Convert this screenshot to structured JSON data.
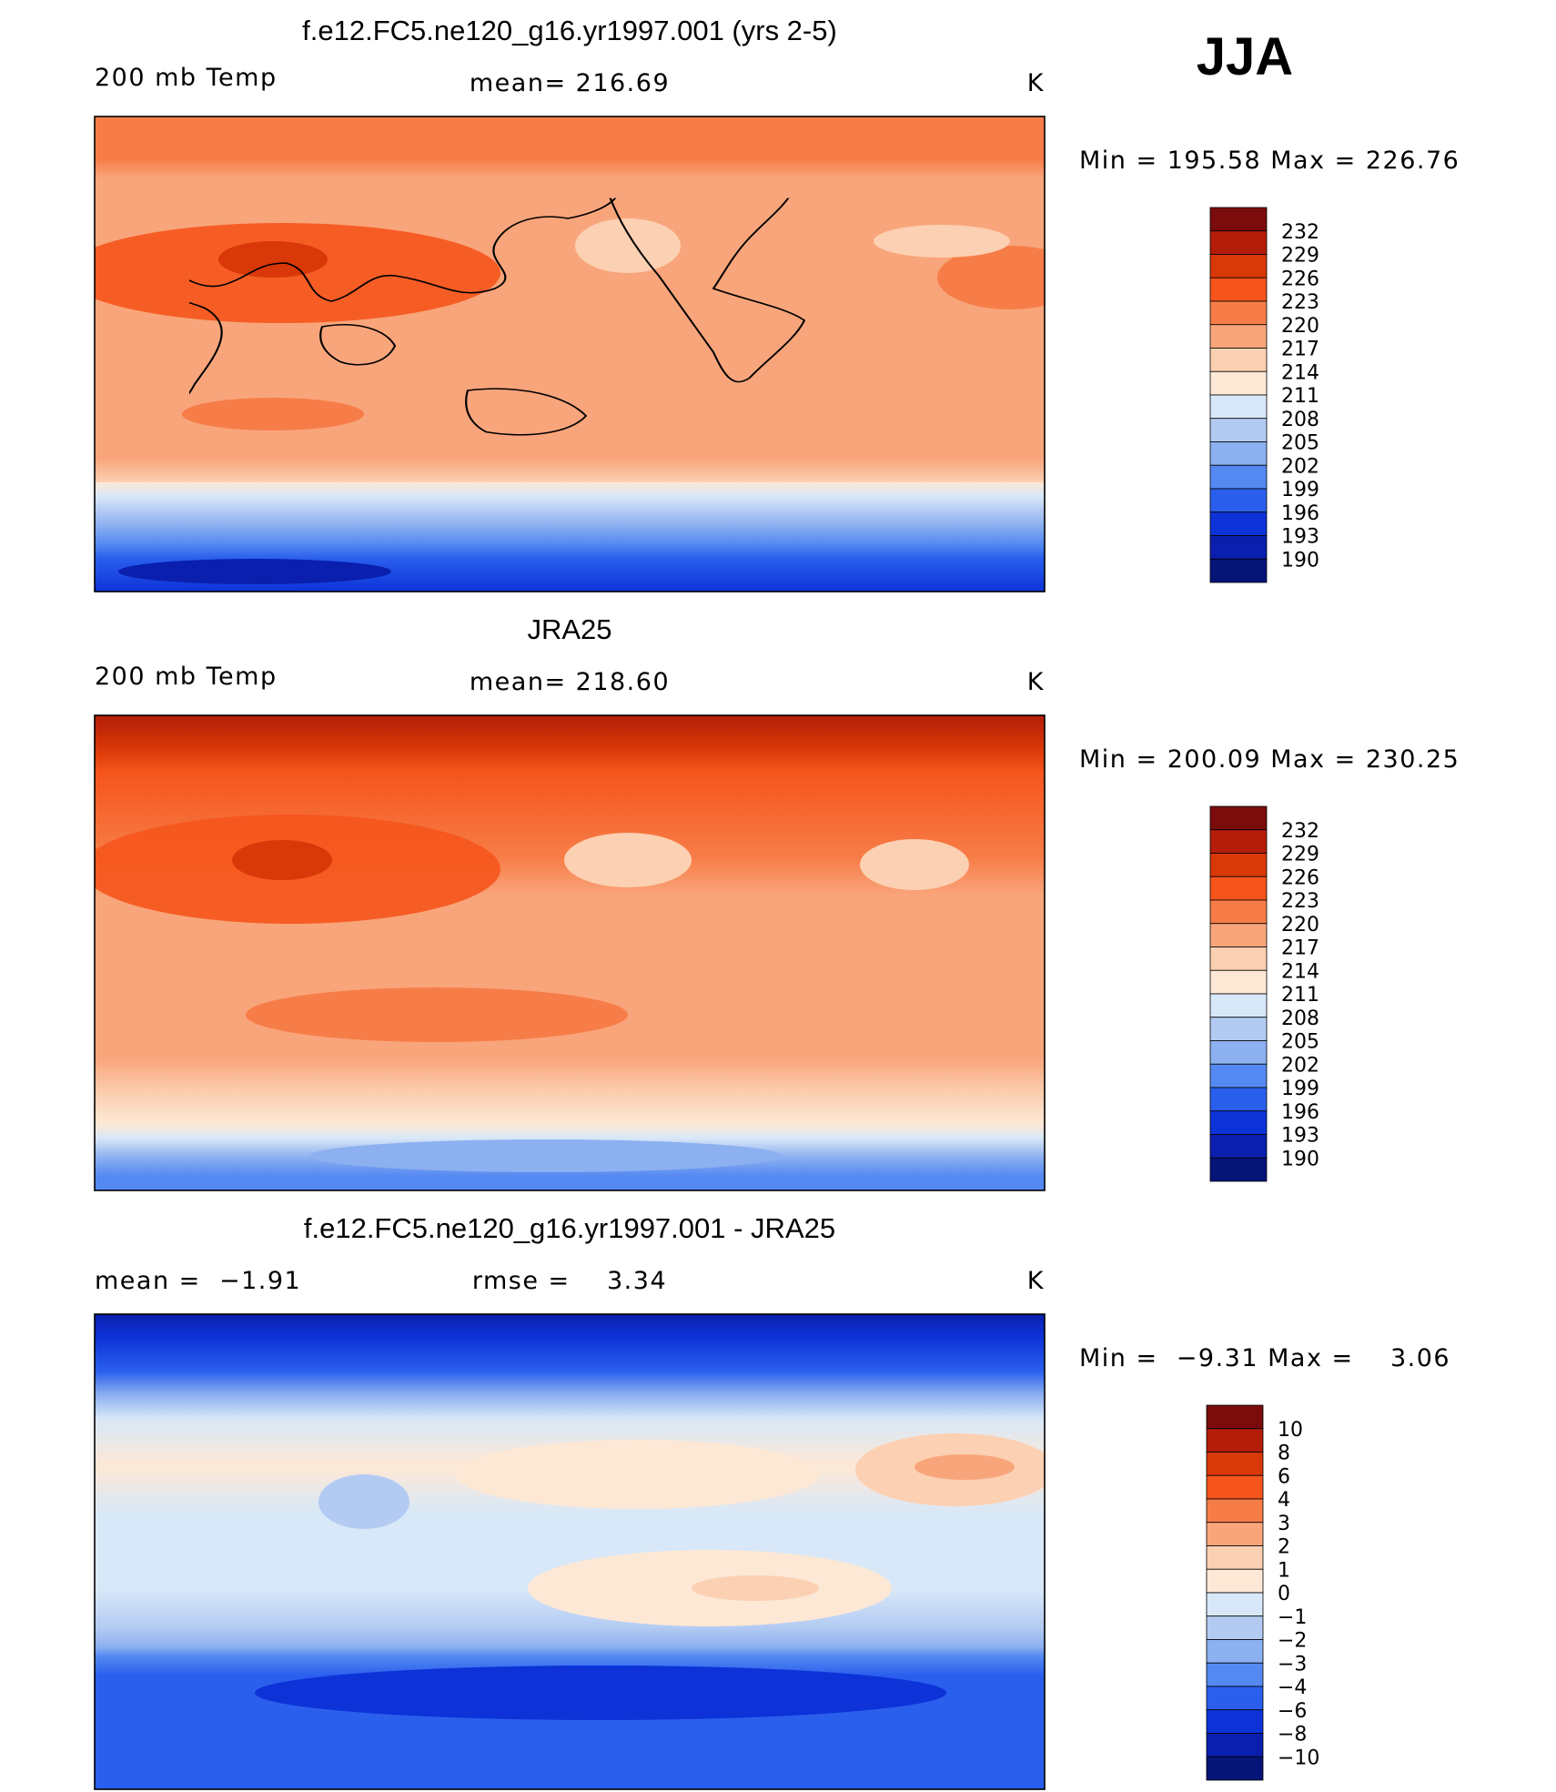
{
  "season": "JJA",
  "panels": [
    {
      "title": "f.e12.FC5.ne120_g16.yr1997.001 (yrs 2-5)",
      "left_text": "200 mb Temp",
      "center_text": "mean= 216.69",
      "units": "K",
      "minmax": "Min = 195.58 Max = 226.76",
      "colorbar_labels": [
        "232",
        "229",
        "226",
        "223",
        "220",
        "217",
        "214",
        "211",
        "208",
        "205",
        "202",
        "199",
        "196",
        "193",
        "190"
      ]
    },
    {
      "title": "JRA25",
      "left_text": "200 mb Temp",
      "center_text": "mean= 218.60",
      "units": "K",
      "minmax": "Min = 200.09 Max = 230.25",
      "colorbar_labels": [
        "232",
        "229",
        "226",
        "223",
        "220",
        "217",
        "214",
        "211",
        "208",
        "205",
        "202",
        "199",
        "196",
        "193",
        "190"
      ]
    },
    {
      "title": "f.e12.FC5.ne120_g16.yr1997.001 - JRA25",
      "left_text": "mean =  −1.91",
      "center_text": "rmse =    3.34",
      "units": "K",
      "minmax": "Min =  −9.31 Max =    3.06",
      "colorbar_labels": [
        "10",
        "8",
        "6",
        "4",
        "3",
        "2",
        "1",
        "0",
        "−1",
        "−2",
        "−3",
        "−4",
        "−6",
        "−8",
        "−10"
      ]
    }
  ],
  "colors": {
    "scale": [
      "#7a0c0c",
      "#b31d09",
      "#d93808",
      "#f5551c",
      "#f77d48",
      "#f9a57b",
      "#fcd0b2",
      "#fde8d6",
      "#d8e8f8",
      "#b3cbf3",
      "#8cb0f0",
      "#5589f2",
      "#2a5fed",
      "#0d33d8",
      "#0a1fae",
      "#061478"
    ],
    "background": "#ffffff",
    "coastline": "#000000"
  }
}
